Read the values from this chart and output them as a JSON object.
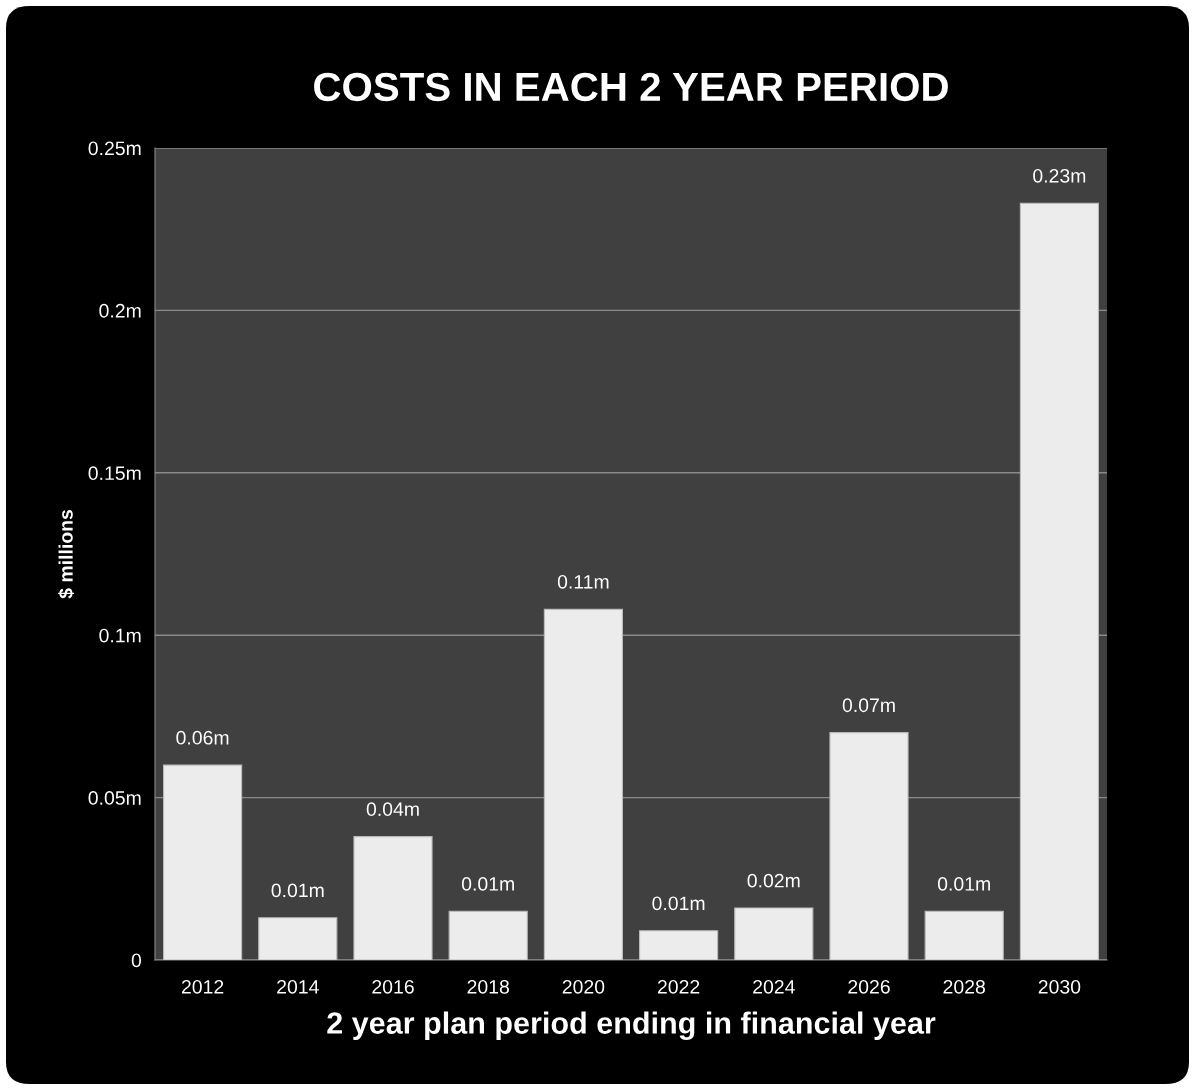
{
  "chart_data": {
    "type": "bar",
    "title": "COSTS IN EACH 2 YEAR PERIOD",
    "xlabel": "2 year plan period ending in financial year",
    "ylabel": "$ millions",
    "categories": [
      "2012",
      "2014",
      "2016",
      "2018",
      "2020",
      "2022",
      "2024",
      "2026",
      "2028",
      "2030"
    ],
    "values": [
      0.06,
      0.013,
      0.038,
      0.015,
      0.108,
      0.009,
      0.016,
      0.07,
      0.015,
      0.233
    ],
    "value_labels": [
      "0.06m",
      "0.01m",
      "0.04m",
      "0.01m",
      "0.11m",
      "0.01m",
      "0.02m",
      "0.07m",
      "0.01m",
      "0.23m"
    ],
    "color": "#ececec",
    "ylim": [
      0,
      0.25
    ],
    "yticks": [
      {
        "value": 0,
        "label": "0"
      },
      {
        "value": 0.05,
        "label": "0.05m"
      },
      {
        "value": 0.1,
        "label": "0.1m"
      },
      {
        "value": 0.15,
        "label": "0.15m"
      },
      {
        "value": 0.2,
        "label": "0.2m"
      },
      {
        "value": 0.25,
        "label": "0.25m"
      }
    ],
    "grid": "y",
    "legend": false
  }
}
